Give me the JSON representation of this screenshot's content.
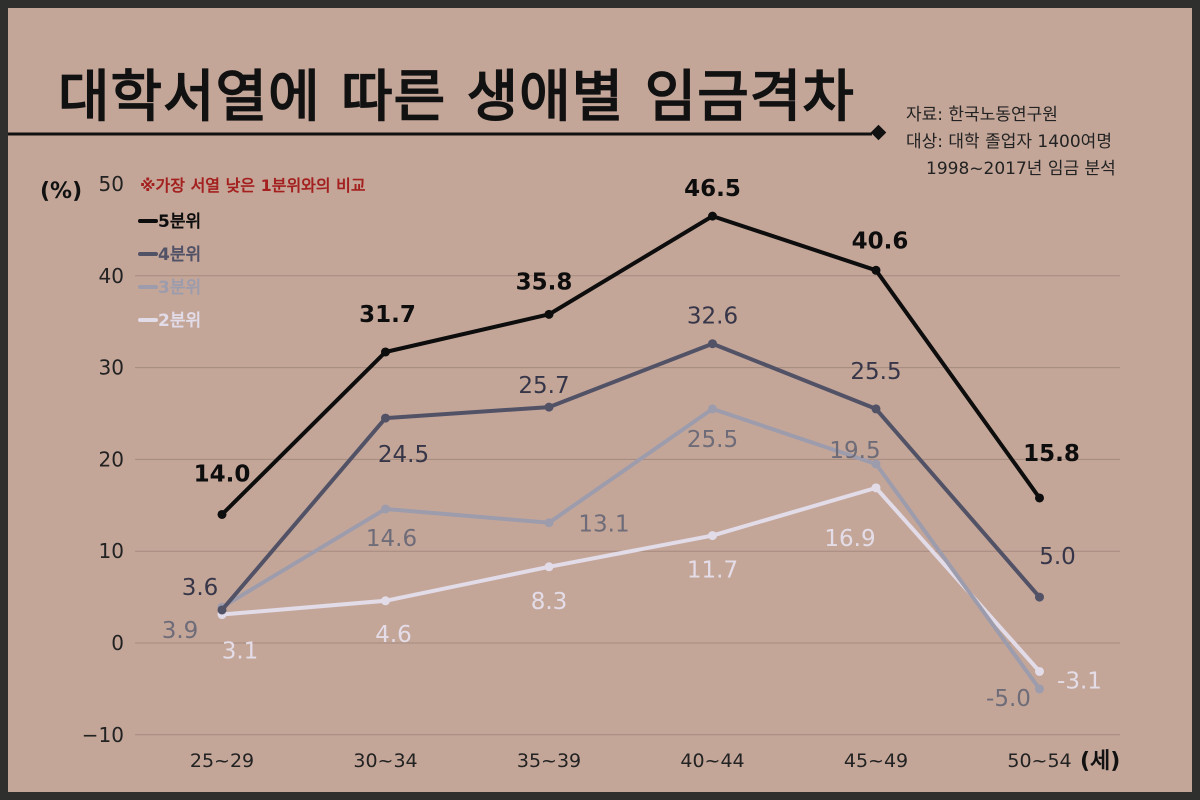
{
  "title": "대학서열에 따른 생애별 임금격차",
  "source": {
    "line1": "자료: 한국노동연구원",
    "line2": "대상: 대학 졸업자 1400여명",
    "line3": "1998~2017년 임금 분석"
  },
  "colors": {
    "background": "#c4a699",
    "frame": "#2f2f2d",
    "note": "#a3201e",
    "gridline": "#a58a7e"
  },
  "chart_data": {
    "type": "line",
    "note": "※가장 서열 낮은 1분위와의 비교",
    "ylabel": "(%)",
    "xunit": "(세)",
    "ylim": [
      -10,
      50
    ],
    "yticks": [
      -10,
      0,
      10,
      20,
      30,
      40,
      50
    ],
    "ytick_labels": [
      "−10",
      "0",
      "10",
      "20",
      "30",
      "40",
      "50"
    ],
    "grid": true,
    "legend_position": "top-left",
    "categories": [
      "25~29",
      "30~34",
      "35~39",
      "40~44",
      "45~49",
      "50~54"
    ],
    "series": [
      {
        "name": "5분위",
        "color": "#0d0d0d",
        "values": [
          14.0,
          31.7,
          35.8,
          46.5,
          40.6,
          15.8
        ],
        "labels": [
          "14.0",
          "31.7",
          "35.8",
          "46.5",
          "40.6",
          "15.8"
        ]
      },
      {
        "name": "4분위",
        "color": "#525267",
        "values": [
          3.6,
          24.5,
          25.7,
          32.6,
          25.5,
          5.0
        ],
        "labels": [
          "3.6",
          "24.5",
          "25.7",
          "32.6",
          "25.5",
          "5.0"
        ]
      },
      {
        "name": "3분위",
        "color": "#9d9cac",
        "values": [
          3.9,
          14.6,
          13.1,
          25.5,
          19.5,
          -5.0
        ],
        "labels": [
          "3.9",
          "14.6",
          "13.1",
          "25.5",
          "19.5",
          "-5.0"
        ]
      },
      {
        "name": "2분위",
        "color": "#e2dbe8",
        "values": [
          3.1,
          4.6,
          8.3,
          11.7,
          16.9,
          -3.1
        ],
        "labels": [
          "3.1",
          "4.6",
          "8.3",
          "11.7",
          "16.9",
          "-3.1"
        ]
      }
    ]
  }
}
